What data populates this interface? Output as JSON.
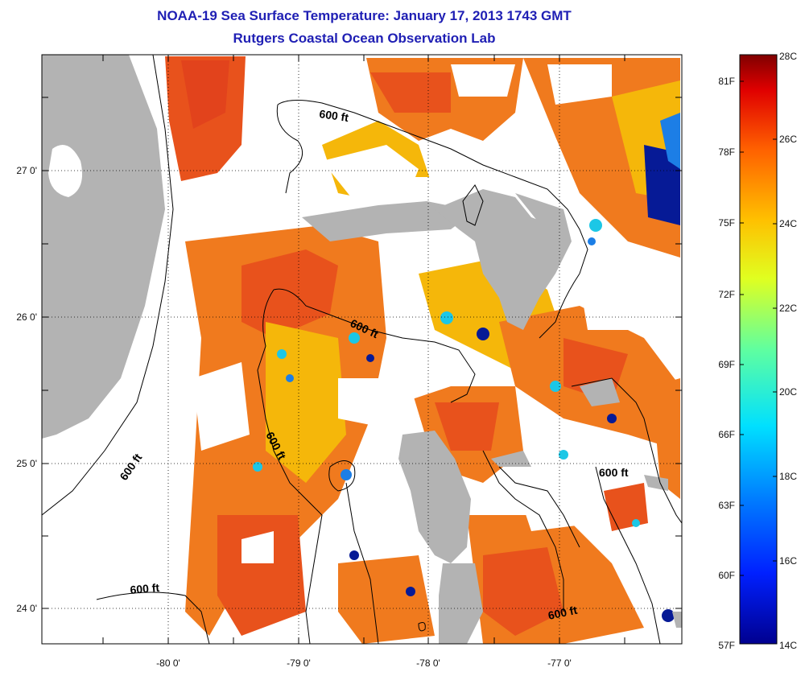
{
  "title": "NOAA-19 Sea Surface Temperature:  January 17, 2013 1743 GMT",
  "subtitle": "Rutgers Coastal Ocean Observation Lab",
  "axes": {
    "lon_labels": [
      "-80 0'",
      "-79 0'",
      "-78 0'",
      "-77 0'"
    ],
    "lat_labels": [
      "27 0'",
      "26 0'",
      "25 0'",
      "24 0'"
    ]
  },
  "contour_label": "600 ft",
  "colorbar": {
    "fahrenheit_labels": [
      "81F",
      "78F",
      "75F",
      "72F",
      "69F",
      "66F",
      "63F",
      "60F",
      "57F"
    ],
    "celsius_labels": [
      "28C",
      "26C",
      "24C",
      "22C",
      "20C",
      "18C",
      "16C",
      "14C"
    ],
    "min_c": 14,
    "max_c": 28
  },
  "colors": {
    "title": "#1f1fb4",
    "land": "#b3b3b3",
    "sst_warm": "#f07a1e",
    "sst_hot": "#e2431c",
    "sst_mid": "#f5b70a",
    "sst_cool": "#1cc7e6",
    "sst_cold": "#061a96"
  }
}
